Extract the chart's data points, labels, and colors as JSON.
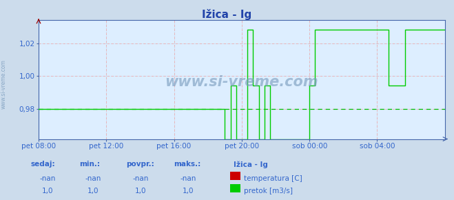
{
  "title": "Ižica - Ig",
  "bg_color": "#ccdcec",
  "plot_bg_color": "#ddeeff",
  "grid_h_color": "#ffaaaa",
  "grid_v_color": "#ffaaaa",
  "grid_dot_color": "#aabbcc",
  "axis_color": "#3366cc",
  "spine_color": "#4466aa",
  "title_color": "#2244aa",
  "watermark": "www.si-vreme.com",
  "watermark_color": "#7799bb",
  "sidebar_color": "#7799bb",
  "x_ticks_labels": [
    "pet 08:00",
    "pet 12:00",
    "pet 16:00",
    "pet 20:00",
    "sob 00:00",
    "sob 04:00"
  ],
  "x_ticks_pos": [
    0.0,
    0.1667,
    0.3333,
    0.5,
    0.6667,
    0.8333
  ],
  "y_ticks": [
    0.98,
    1.0,
    1.02
  ],
  "ylim": [
    0.962,
    1.034
  ],
  "xlim": [
    0.0,
    1.0
  ],
  "dashed_line_color": "#00bb00",
  "temp_color": "#cc0000",
  "flow_color": "#00cc00",
  "legend_title": "Ižica - Ig",
  "legend_temp_label": "temperatura [C]",
  "legend_flow_label": "pretok [m3/s]",
  "table_headers": [
    "sedaj:",
    "min.:",
    "povpr.:",
    "maks.:"
  ],
  "table_temp_vals": [
    "-nan",
    "-nan",
    "-nan",
    "-nan"
  ],
  "table_flow_vals": [
    "1,0",
    "1,0",
    "1,0",
    "1,0"
  ],
  "flow_segment": [
    [
      0.0,
      0.98
    ],
    [
      0.4583,
      0.98
    ],
    [
      0.4583,
      0.962
    ],
    [
      0.4722,
      0.962
    ],
    [
      0.4722,
      0.9944
    ],
    [
      0.4861,
      0.9944
    ],
    [
      0.4861,
      0.962
    ],
    [
      0.5139,
      0.962
    ],
    [
      0.5139,
      1.028
    ],
    [
      0.5278,
      1.028
    ],
    [
      0.5278,
      0.9944
    ],
    [
      0.5417,
      0.9944
    ],
    [
      0.5417,
      0.962
    ],
    [
      0.5556,
      0.962
    ],
    [
      0.5556,
      0.9944
    ],
    [
      0.5694,
      0.9944
    ],
    [
      0.5694,
      0.962
    ],
    [
      0.6667,
      0.962
    ],
    [
      0.6667,
      0.9944
    ],
    [
      0.6806,
      0.9944
    ],
    [
      0.6806,
      1.028
    ],
    [
      0.8611,
      1.028
    ],
    [
      0.8611,
      0.9944
    ],
    [
      0.9028,
      0.9944
    ],
    [
      0.9028,
      1.028
    ],
    [
      1.0,
      1.028
    ]
  ]
}
